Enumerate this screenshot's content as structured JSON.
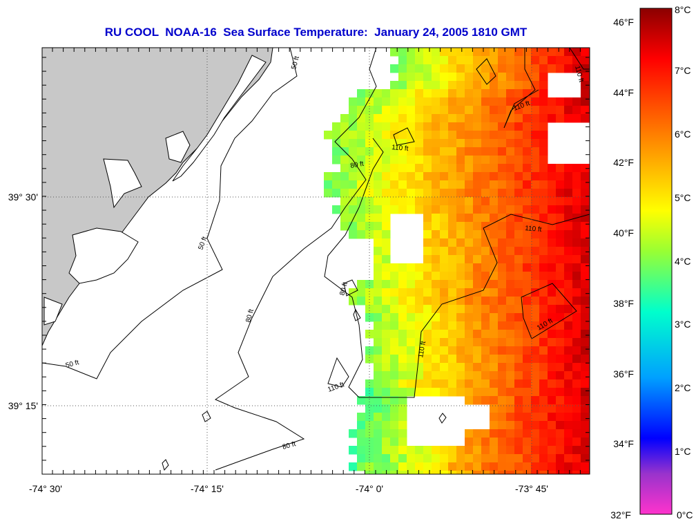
{
  "title": "RU COOL  NOAA-16  Sea Surface Temperature:  January 24, 2005 1810 GMT",
  "colors": {
    "land": "#c8c8c8",
    "title": "#0000cc",
    "contour": "#000000"
  },
  "axes": {
    "x_labels": [
      "-74° 30'",
      "-74° 15'",
      "-74° 0'",
      "-73° 45'"
    ],
    "y_labels": [
      "39° 30'",
      "39° 15'"
    ]
  },
  "contour_labels": [
    "50 ft",
    "50 ft",
    "50 ft",
    "80 ft",
    "80 ft",
    "80 ft",
    "80 ft",
    "110 ft",
    "110 ft",
    "110 ft",
    "110 ft",
    "110 ft",
    "110 ft",
    "110 ft"
  ],
  "colorbar": {
    "fahrenheit_labels": [
      "46°F",
      "44°F",
      "42°F",
      "40°F",
      "38°F",
      "36°F",
      "34°F",
      "32°F"
    ],
    "celsius_labels": [
      "8°C",
      "7°C",
      "6°C",
      "5°C",
      "4°C",
      "3°C",
      "2°C",
      "1°C",
      "0°C"
    ],
    "range_c": [
      0,
      8
    ],
    "stops": [
      "#ff33cc",
      "#9933cc",
      "#0000ff",
      "#00ccff",
      "#33ff99",
      "#ccff33",
      "#ffff00",
      "#ffaa00",
      "#ff5500",
      "#ff0000",
      "#8b0000"
    ]
  }
}
